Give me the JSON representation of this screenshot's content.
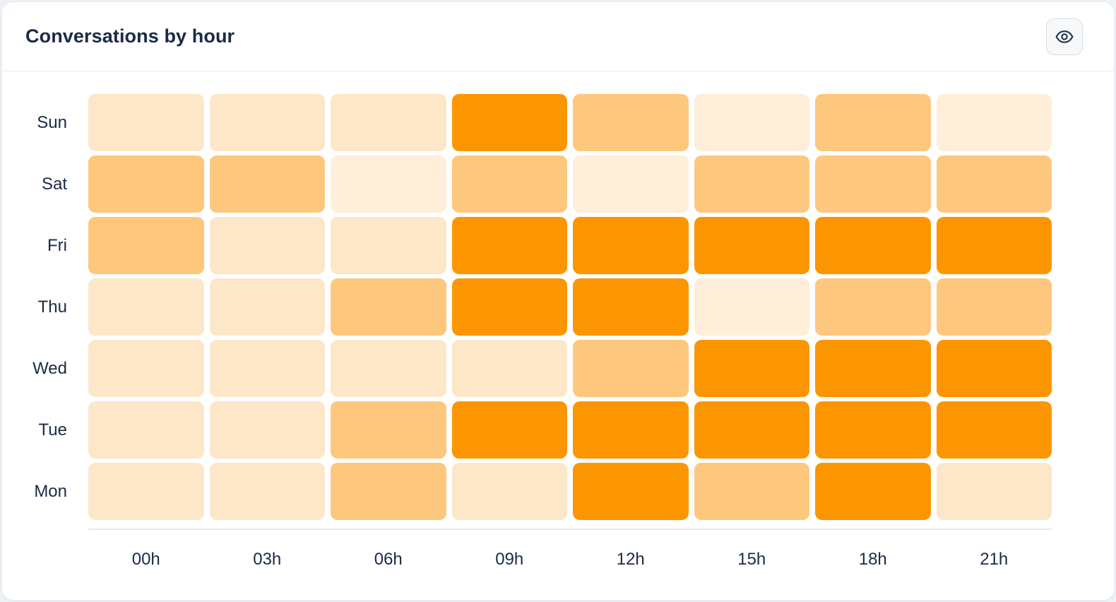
{
  "header": {
    "title": "Conversations by hour",
    "eye_button_icon": "eye-icon"
  },
  "theme": {
    "card_background": "#ffffff",
    "title_color": "#1b2a47",
    "axis_label_color": "#1b2a47",
    "divider_color": "#e9ecf2",
    "accent_orange": "#fb9602"
  },
  "chart_data": {
    "type": "heatmap",
    "title": "Conversations by hour",
    "rows": [
      "Sun",
      "Sat",
      "Fri",
      "Thu",
      "Wed",
      "Tue",
      "Mon"
    ],
    "columns": [
      "00h",
      "03h",
      "06h",
      "09h",
      "12h",
      "15h",
      "18h",
      "21h"
    ],
    "intensity_scale": "1 = lowest activity, 4 = highest activity",
    "values": [
      [
        2,
        2,
        2,
        4,
        3,
        1,
        3,
        1
      ],
      [
        3,
        3,
        1,
        3,
        1,
        3,
        3,
        3
      ],
      [
        3,
        2,
        2,
        4,
        4,
        4,
        4,
        4
      ],
      [
        2,
        2,
        3,
        4,
        4,
        1,
        3,
        3
      ],
      [
        2,
        2,
        2,
        2,
        3,
        4,
        4,
        4
      ],
      [
        2,
        2,
        3,
        4,
        4,
        4,
        4,
        4
      ],
      [
        2,
        2,
        3,
        2,
        4,
        3,
        4,
        2
      ]
    ],
    "palette": {
      "1": "#ffeed9",
      "2": "#fde7c9",
      "3": "#fec77e",
      "4": "#fb9602"
    },
    "legend": "none",
    "grid": "off"
  }
}
